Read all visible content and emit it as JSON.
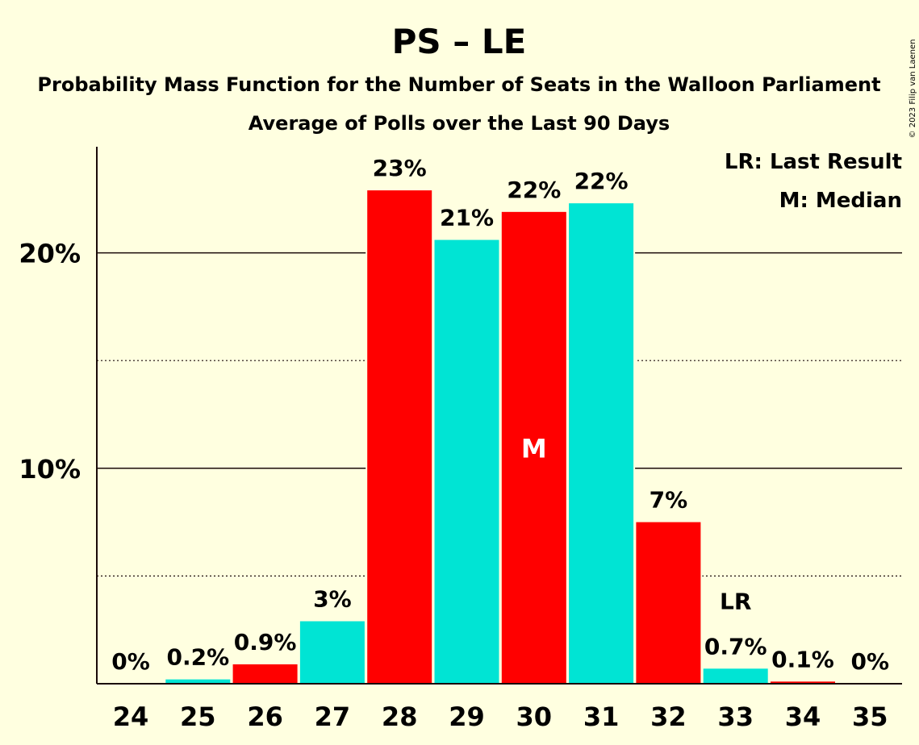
{
  "title": "PS – LE",
  "subtitle": "Probability Mass Function for the Number of Seats in the Walloon Parliament",
  "subtitle2": "Average of Polls over the Last 90 Days",
  "copyright": "© 2023 Filip van Laenen",
  "legend": {
    "last_result": "LR: Last Result",
    "median": "M: Median"
  },
  "chart_data": {
    "type": "bar",
    "title": "PS – LE",
    "xlabel": "",
    "ylabel": "",
    "ylim": [
      0,
      25
    ],
    "y_ticks": [
      {
        "value": 10,
        "label": "10%"
      },
      {
        "value": 20,
        "label": "20%"
      }
    ],
    "dotted_gridlines": [
      5,
      15
    ],
    "categories": [
      "24",
      "25",
      "26",
      "27",
      "28",
      "29",
      "30",
      "31",
      "32",
      "33",
      "34",
      "35"
    ],
    "values": [
      0,
      0.2,
      0.9,
      2.9,
      22.9,
      20.6,
      21.9,
      22.3,
      7.5,
      0.7,
      0.1,
      0
    ],
    "value_labels": [
      "0%",
      "0.2%",
      "0.9%",
      "3%",
      "23%",
      "21%",
      "22%",
      "22%",
      "7%",
      "0.7%",
      "0.1%",
      "0%"
    ],
    "colors": [
      "#FF0000",
      "#00E4D4",
      "#FF0000",
      "#00E4D4",
      "#FF0000",
      "#00E4D4",
      "#FF0000",
      "#00E4D4",
      "#FF0000",
      "#00E4D4",
      "#FF0000",
      "#00E4D4"
    ],
    "median": {
      "category": "30",
      "label": "M"
    },
    "last_result": {
      "category": "33",
      "label": "LR"
    }
  }
}
